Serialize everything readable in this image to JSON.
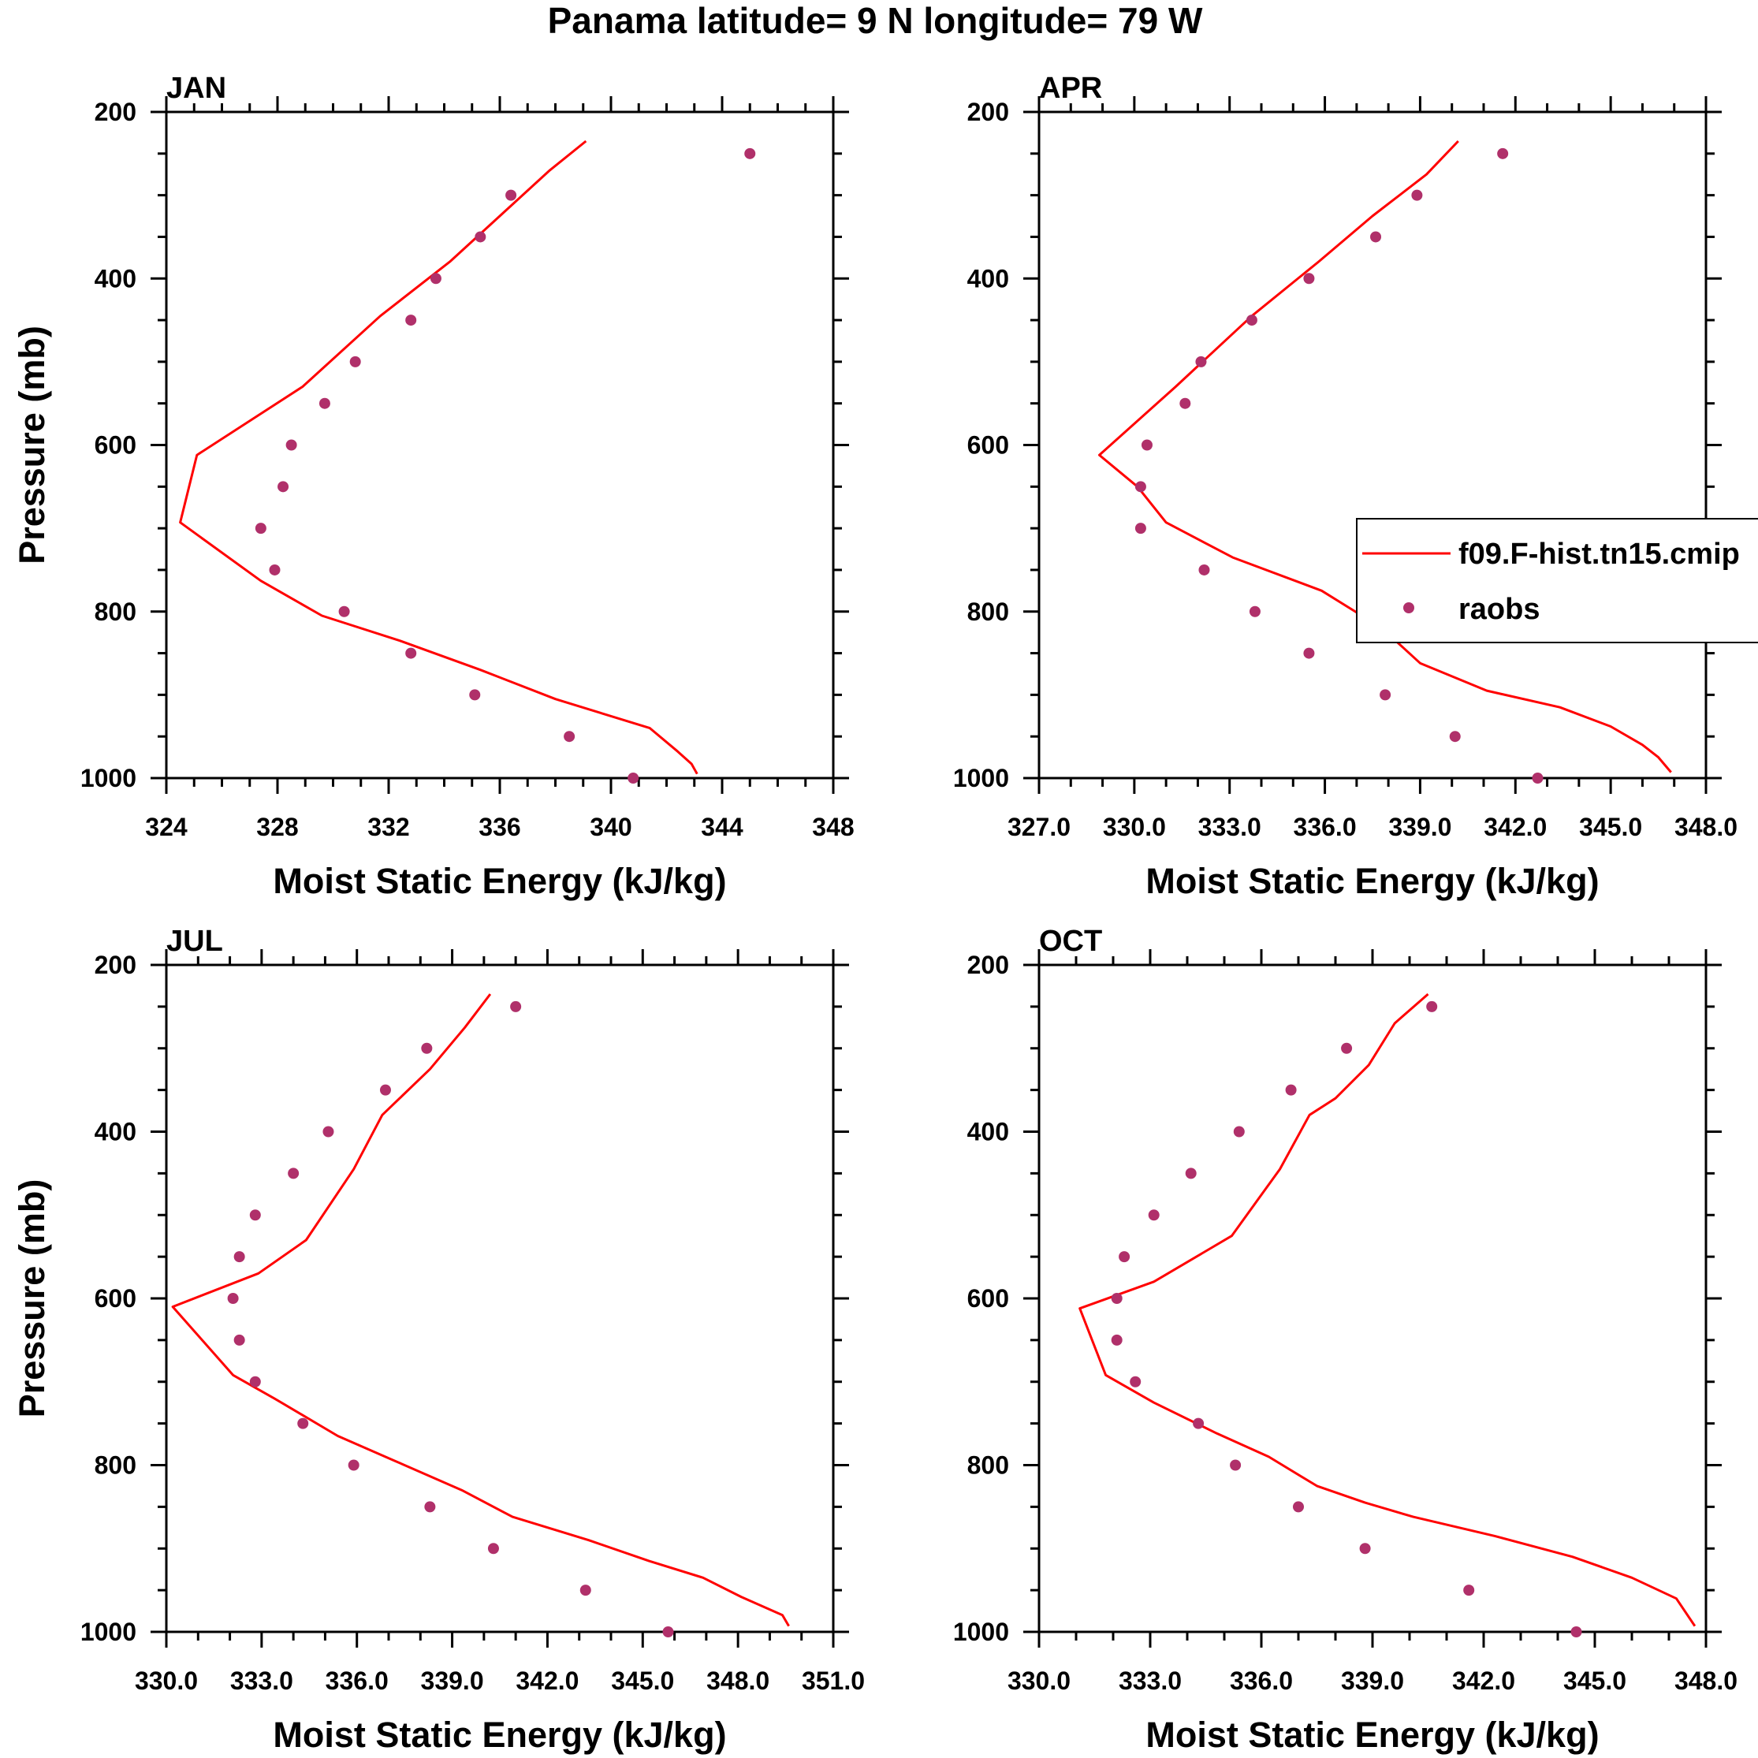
{
  "figure": {
    "title": "Panama  latitude= 9 N longitude= 79 W"
  },
  "legend": {
    "entries": [
      "f09.F-hist.tn15.cmip",
      "raobs"
    ]
  },
  "colors": {
    "model_line": "#ff0000",
    "obs_marker": "#b0306a",
    "axis": "#000000"
  },
  "chart_data": [
    {
      "type": "line",
      "title": "JAN",
      "xlabel": "Moist Static Energy (kJ/kg)",
      "ylabel": "Pressure (mb)",
      "xlim": [
        324,
        348
      ],
      "ylim": [
        200,
        1000
      ],
      "y_inverted": true,
      "xticks": [
        "324",
        "328",
        "332",
        "336",
        "340",
        "344",
        "348"
      ],
      "yticks": [
        "200",
        "400",
        "600",
        "800",
        "1000"
      ],
      "series": [
        {
          "name": "f09.F-hist.tn15.cmip",
          "kind": "line",
          "x": [
            339.1,
            337.8,
            336.0,
            334.2,
            331.7,
            328.9,
            325.1,
            324.5,
            327.4,
            329.6,
            332.4,
            335.3,
            338.0,
            341.4,
            342.4,
            342.9,
            343.1
          ],
          "y": [
            235,
            270,
            325,
            380,
            445,
            530,
            612,
            693,
            763,
            805,
            835,
            870,
            905,
            940,
            968,
            983,
            995
          ]
        },
        {
          "name": "raobs",
          "kind": "scatter",
          "x": [
            345.0,
            336.4,
            335.3,
            333.7,
            332.8,
            330.8,
            329.7,
            328.5,
            328.2,
            327.4,
            327.9,
            330.4,
            332.8,
            335.1,
            338.5,
            340.8
          ],
          "y": [
            250,
            300,
            350,
            400,
            450,
            500,
            550,
            600,
            650,
            700,
            750,
            800,
            850,
            900,
            950,
            1000
          ]
        }
      ]
    },
    {
      "type": "line",
      "title": "APR",
      "xlabel": "Moist Static Energy (kJ/kg)",
      "ylabel": "",
      "xlim": [
        327,
        348
      ],
      "ylim": [
        200,
        1000
      ],
      "y_inverted": true,
      "xticks": [
        "327.0",
        "330.0",
        "333.0",
        "336.0",
        "339.0",
        "342.0",
        "345.0",
        "348.0"
      ],
      "yticks": [
        "200",
        "400",
        "600",
        "800",
        "1000"
      ],
      "series": [
        {
          "name": "f09.F-hist.tn15.cmip",
          "kind": "line",
          "x": [
            340.2,
            339.2,
            337.5,
            335.8,
            333.7,
            331.3,
            328.9,
            330.1,
            331.0,
            333.1,
            335.9,
            337.8,
            339.0,
            341.1,
            343.4,
            345.0,
            346.0,
            346.5,
            346.9
          ],
          "y": [
            235,
            275,
            325,
            380,
            445,
            530,
            612,
            650,
            693,
            735,
            775,
            820,
            862,
            895,
            915,
            938,
            960,
            975,
            993
          ]
        },
        {
          "name": "raobs",
          "kind": "scatter",
          "x": [
            341.6,
            338.9,
            337.6,
            335.5,
            333.7,
            332.1,
            331.6,
            330.4,
            330.2,
            330.2,
            332.2,
            333.8,
            335.5,
            337.9,
            340.1,
            342.7
          ],
          "y": [
            250,
            300,
            350,
            400,
            450,
            500,
            550,
            600,
            650,
            700,
            750,
            800,
            850,
            900,
            950,
            1000
          ]
        }
      ]
    },
    {
      "type": "line",
      "title": "JUL",
      "xlabel": "Moist Static Energy (kJ/kg)",
      "ylabel": "Pressure (mb)",
      "xlim": [
        330,
        351
      ],
      "ylim": [
        200,
        1000
      ],
      "y_inverted": true,
      "xticks": [
        "330.0",
        "333.0",
        "336.0",
        "339.0",
        "342.0",
        "345.0",
        "348.0",
        "351.0"
      ],
      "yticks": [
        "200",
        "400",
        "600",
        "800",
        "1000"
      ],
      "series": [
        {
          "name": "f09.F-hist.tn15.cmip",
          "kind": "line",
          "x": [
            340.2,
            339.4,
            338.3,
            336.8,
            335.9,
            334.4,
            332.9,
            330.2,
            332.1,
            333.4,
            335.4,
            337.2,
            339.3,
            340.9,
            343.3,
            345.2,
            346.9,
            348.1,
            349.4,
            349.6
          ],
          "y": [
            235,
            275,
            325,
            380,
            445,
            530,
            570,
            610,
            692,
            720,
            765,
            795,
            830,
            862,
            890,
            915,
            935,
            958,
            980,
            993
          ]
        },
        {
          "name": "raobs",
          "kind": "scatter",
          "x": [
            341.0,
            338.2,
            336.9,
            335.1,
            334.0,
            332.8,
            332.3,
            332.1,
            332.3,
            332.8,
            334.3,
            335.9,
            338.3,
            340.3,
            343.2,
            345.8
          ],
          "y": [
            250,
            300,
            350,
            400,
            450,
            500,
            550,
            600,
            650,
            700,
            750,
            800,
            850,
            900,
            950,
            1000
          ]
        }
      ]
    },
    {
      "type": "line",
      "title": "OCT",
      "xlabel": "Moist Static Energy (kJ/kg)",
      "ylabel": "",
      "xlim": [
        330,
        348
      ],
      "ylim": [
        200,
        1000
      ],
      "y_inverted": true,
      "xticks": [
        "330.0",
        "333.0",
        "336.0",
        "339.0",
        "342.0",
        "345.0",
        "348.0"
      ],
      "yticks": [
        "200",
        "400",
        "600",
        "800",
        "1000"
      ],
      "series": [
        {
          "name": "f09.F-hist.tn15.cmip",
          "kind": "line",
          "x": [
            340.5,
            339.6,
            338.9,
            338.0,
            337.3,
            336.5,
            335.2,
            333.1,
            331.1,
            331.8,
            333.1,
            334.8,
            336.2,
            337.5,
            338.8,
            340.1,
            342.3,
            344.4,
            346.0,
            347.2,
            347.7
          ],
          "y": [
            235,
            270,
            320,
            360,
            380,
            445,
            525,
            580,
            612,
            692,
            725,
            762,
            790,
            825,
            845,
            862,
            885,
            910,
            935,
            960,
            993
          ]
        },
        {
          "name": "raobs",
          "kind": "scatter",
          "x": [
            340.6,
            338.3,
            336.8,
            335.4,
            334.1,
            333.1,
            332.3,
            332.1,
            332.1,
            332.6,
            334.3,
            335.3,
            337.0,
            338.8,
            341.6,
            344.5
          ],
          "y": [
            250,
            300,
            350,
            400,
            450,
            500,
            550,
            600,
            650,
            700,
            750,
            800,
            850,
            900,
            950,
            1000
          ]
        }
      ]
    }
  ]
}
